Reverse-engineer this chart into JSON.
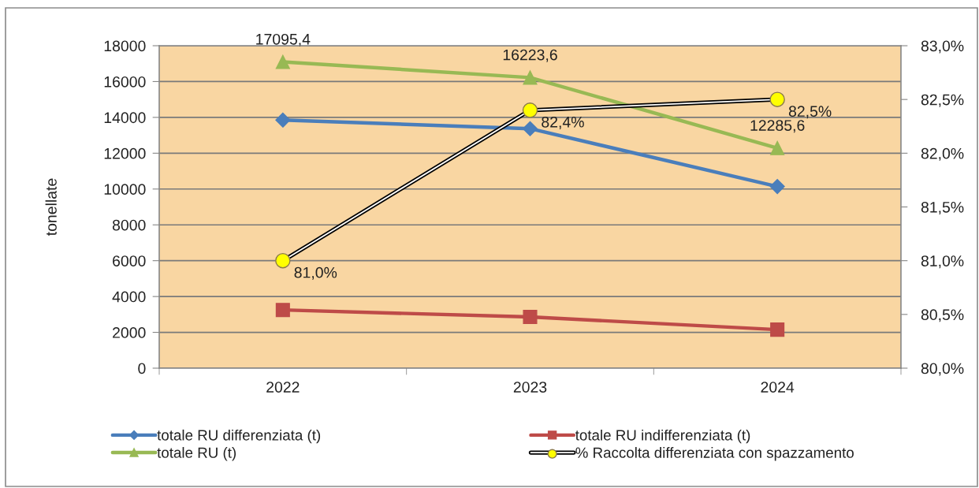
{
  "chart_data": {
    "type": "line",
    "categories": [
      "2022",
      "2023",
      "2024"
    ],
    "ylabel": "tonellate",
    "ylim": [
      0,
      18000
    ],
    "yticks": [
      0,
      2000,
      4000,
      6000,
      8000,
      10000,
      12000,
      14000,
      16000,
      18000
    ],
    "y2lim": [
      80,
      83
    ],
    "y2ticks": [
      {
        "value": 80,
        "label": "80,0%"
      },
      {
        "value": 80.5,
        "label": "80,5%"
      },
      {
        "value": 81,
        "label": "81,0%"
      },
      {
        "value": 81.5,
        "label": "81,5%"
      },
      {
        "value": 82,
        "label": "82,0%"
      },
      {
        "value": 82.5,
        "label": "82,5%"
      },
      {
        "value": 83,
        "label": "83,0%"
      }
    ],
    "grid": "y",
    "legend": "bottom",
    "series": [
      {
        "name": "totale RU differenziata (t)",
        "color": "#4a7ebb",
        "marker": "diamond",
        "values": [
          13850,
          13370,
          10140
        ]
      },
      {
        "name": "totale RU indifferenziata (t)",
        "color": "#be4b48",
        "marker": "square",
        "values": [
          3250,
          2860,
          2150
        ]
      },
      {
        "name": "totale RU (t)",
        "color": "#98b954",
        "marker": "triangle",
        "values": [
          17095.4,
          16223.6,
          12285.6
        ],
        "value_labels": [
          "17095,4",
          "16223,6",
          "12285,6"
        ]
      },
      {
        "name": "% Raccolta differenziata con spazzamento",
        "color": "#000000",
        "colors": [
          "#ffff00",
          "#ffff00",
          "#ffff00"
        ],
        "marker": "circle",
        "axis": "y2",
        "values": [
          81.0,
          82.4,
          82.5
        ],
        "value_labels": [
          "81,0%",
          "82,4%",
          "82,5%"
        ]
      }
    ]
  }
}
